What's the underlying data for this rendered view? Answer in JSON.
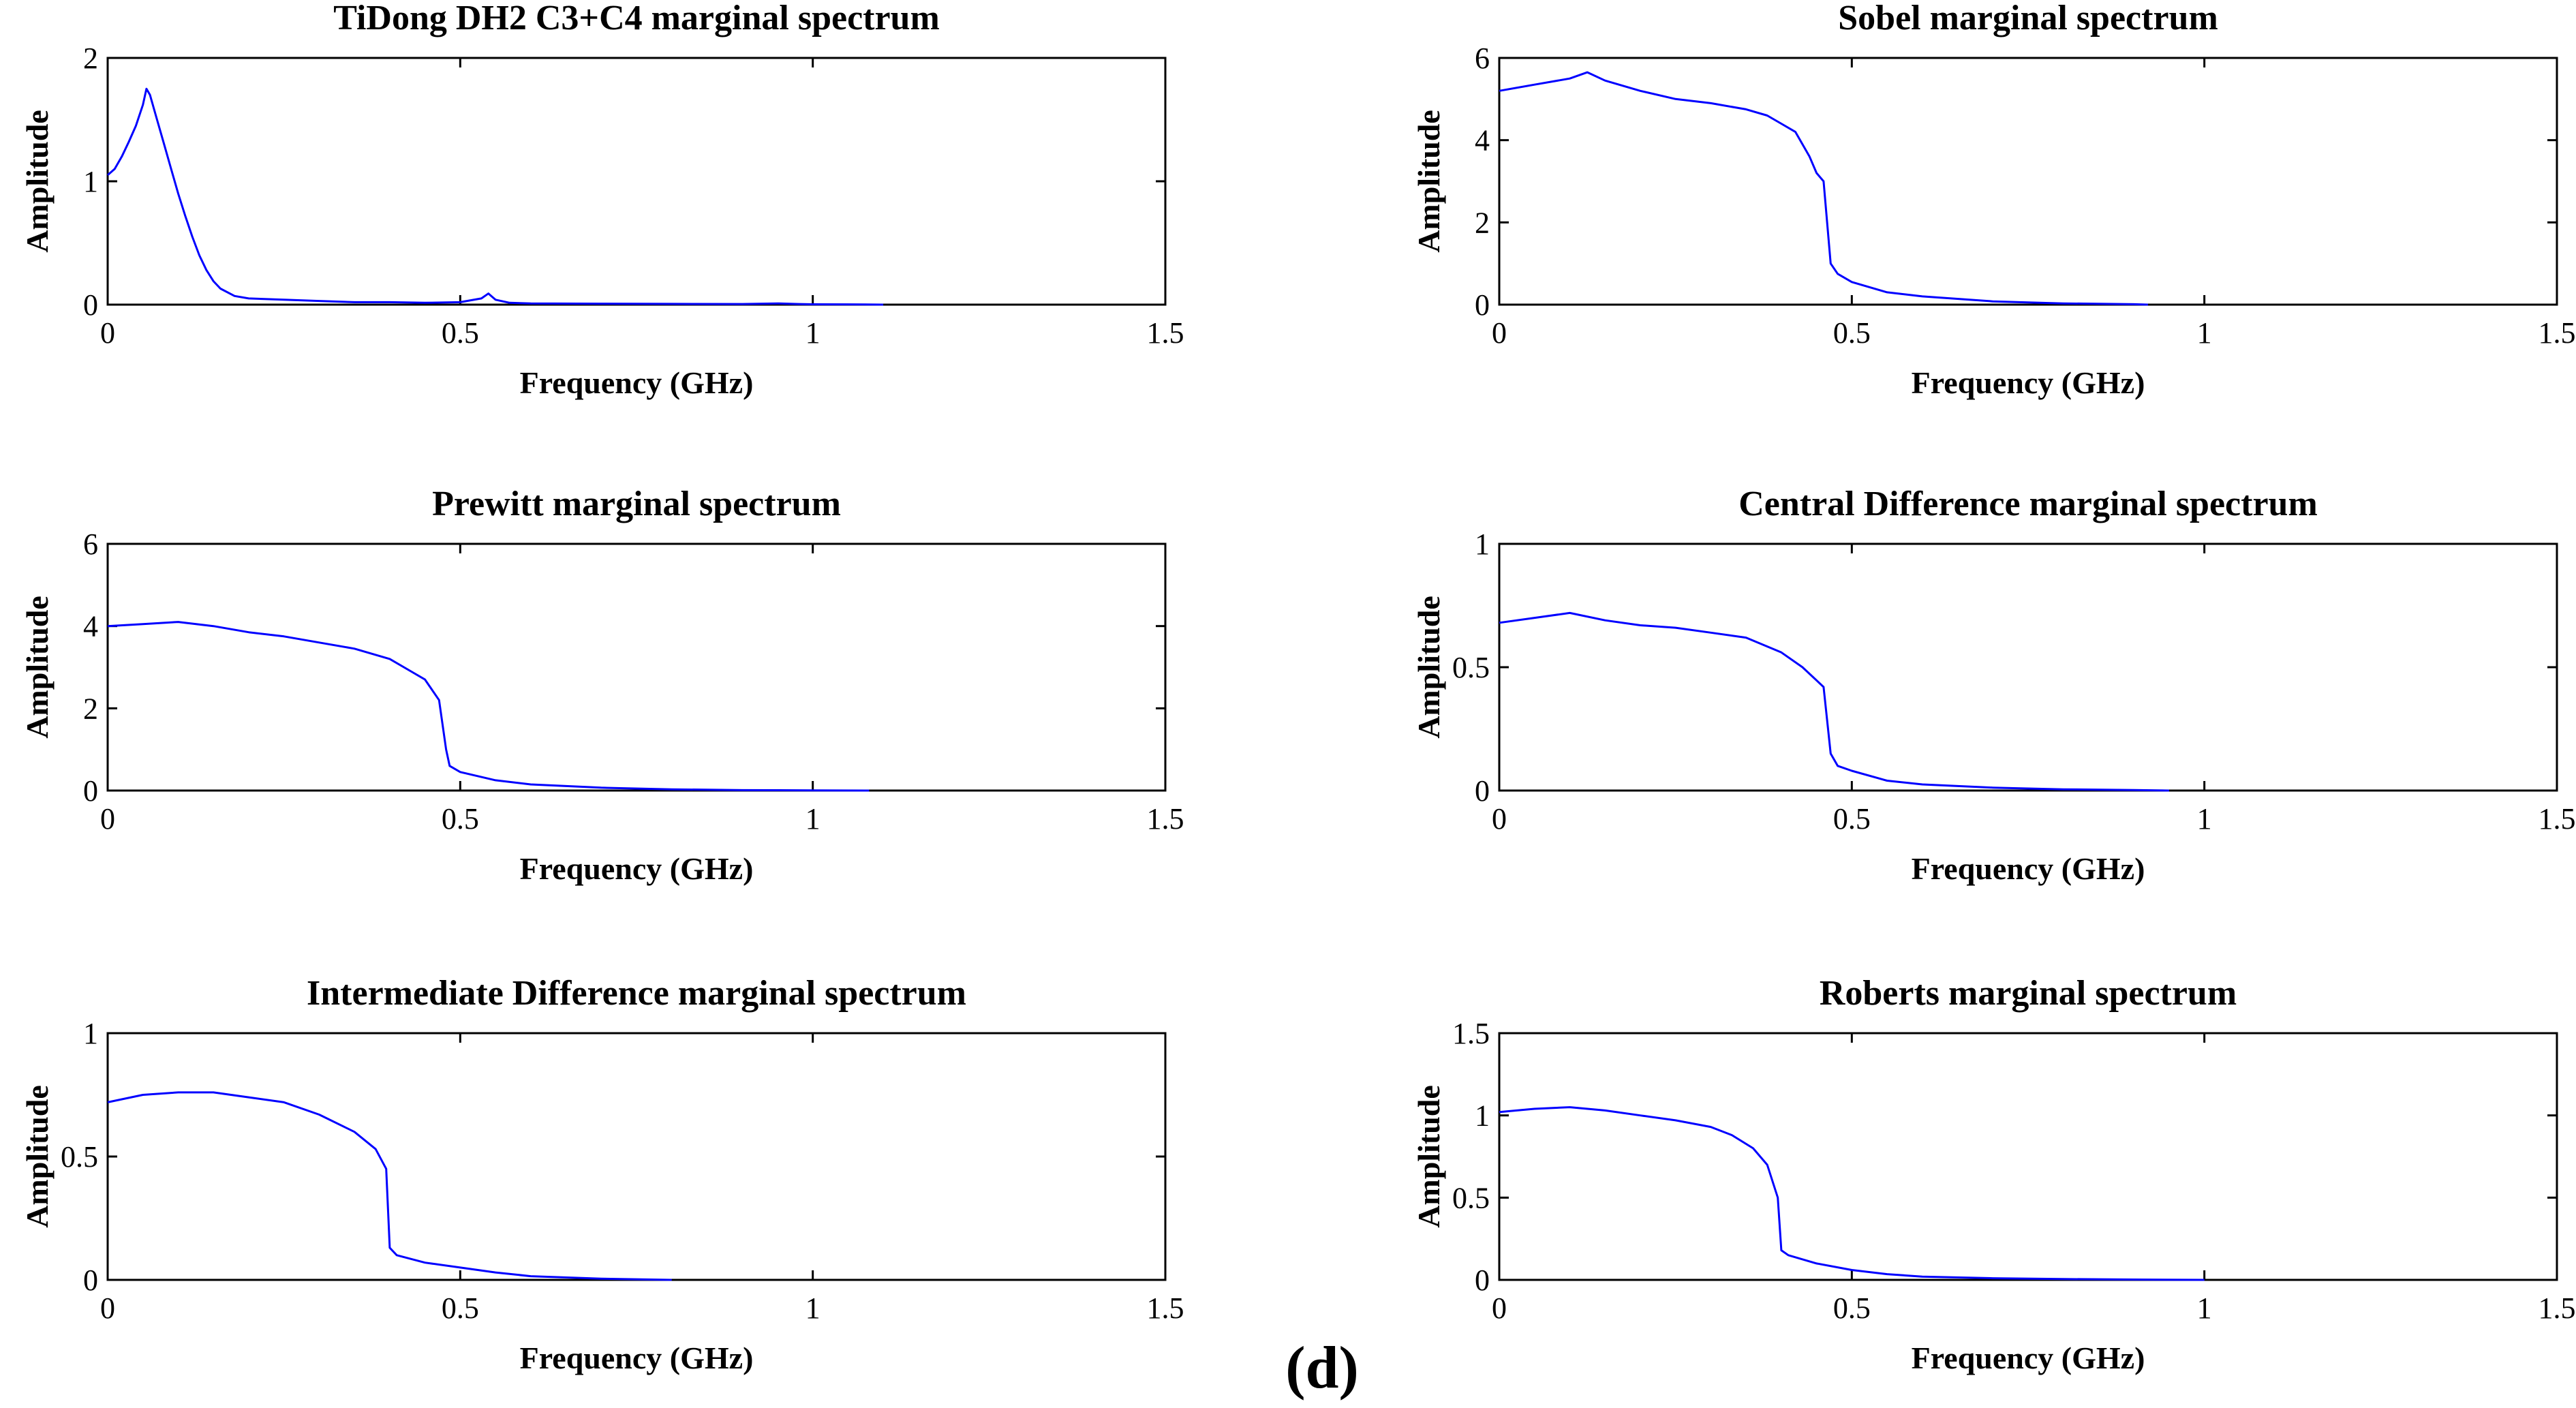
{
  "figure_label": "(d)",
  "chart_data": [
    {
      "type": "line",
      "title": "TiDong DH2 C3+C4 marginal spectrum",
      "xlabel": "Frequency (GHz)",
      "ylabel": "Amplitude",
      "xlim": [
        0,
        1.5
      ],
      "ylim": [
        0,
        2
      ],
      "xticks": [
        "0",
        "0.5",
        "1",
        "1.5"
      ],
      "yticks": [
        "0",
        "1",
        "2"
      ],
      "color": "#0000ff",
      "series": [
        {
          "name": "",
          "x": [
            0,
            0.01,
            0.02,
            0.03,
            0.04,
            0.05,
            0.055,
            0.06,
            0.07,
            0.08,
            0.09,
            0.1,
            0.11,
            0.12,
            0.13,
            0.14,
            0.15,
            0.16,
            0.18,
            0.2,
            0.25,
            0.3,
            0.35,
            0.4,
            0.45,
            0.5,
            0.53,
            0.54,
            0.55,
            0.57,
            0.6,
            0.7,
            0.8,
            0.9,
            0.95,
            0.98,
            1.0,
            1.05,
            1.1
          ],
          "y": [
            1.05,
            1.1,
            1.2,
            1.32,
            1.45,
            1.62,
            1.75,
            1.7,
            1.5,
            1.3,
            1.1,
            0.9,
            0.72,
            0.55,
            0.4,
            0.28,
            0.19,
            0.13,
            0.07,
            0.05,
            0.04,
            0.03,
            0.02,
            0.02,
            0.015,
            0.02,
            0.05,
            0.09,
            0.04,
            0.015,
            0.01,
            0.008,
            0.006,
            0.005,
            0.01,
            0.005,
            0.003,
            0.002,
            0.0
          ]
        }
      ]
    },
    {
      "type": "line",
      "title": "Sobel marginal spectrum",
      "xlabel": "Frequency (GHz)",
      "ylabel": "Amplitude",
      "xlim": [
        0,
        1.5
      ],
      "ylim": [
        0,
        6
      ],
      "xticks": [
        "0",
        "0.5",
        "1",
        "1.5"
      ],
      "yticks": [
        "0",
        "2",
        "4",
        "6"
      ],
      "color": "#0000ff",
      "series": [
        {
          "name": "",
          "x": [
            0,
            0.05,
            0.1,
            0.125,
            0.15,
            0.2,
            0.25,
            0.3,
            0.35,
            0.38,
            0.4,
            0.42,
            0.44,
            0.45,
            0.46,
            0.47,
            0.48,
            0.5,
            0.55,
            0.6,
            0.7,
            0.8,
            0.9,
            0.92
          ],
          "y": [
            5.2,
            5.35,
            5.5,
            5.65,
            5.45,
            5.2,
            5.0,
            4.9,
            4.75,
            4.6,
            4.4,
            4.2,
            3.6,
            3.2,
            3.0,
            1.0,
            0.75,
            0.55,
            0.3,
            0.2,
            0.08,
            0.03,
            0.01,
            0.0
          ]
        }
      ]
    },
    {
      "type": "line",
      "title": "Prewitt marginal spectrum",
      "xlabel": "Frequency (GHz)",
      "ylabel": "Amplitude",
      "xlim": [
        0,
        1.5
      ],
      "ylim": [
        0,
        6
      ],
      "xticks": [
        "0",
        "0.5",
        "1",
        "1.5"
      ],
      "yticks": [
        "0",
        "2",
        "4",
        "6"
      ],
      "color": "#0000ff",
      "series": [
        {
          "name": "",
          "x": [
            0,
            0.05,
            0.1,
            0.15,
            0.2,
            0.25,
            0.3,
            0.35,
            0.4,
            0.43,
            0.45,
            0.47,
            0.48,
            0.485,
            0.5,
            0.55,
            0.6,
            0.7,
            0.8,
            0.9,
            1.0,
            1.08
          ],
          "y": [
            4.0,
            4.05,
            4.1,
            4.0,
            3.85,
            3.75,
            3.6,
            3.45,
            3.2,
            2.9,
            2.7,
            2.2,
            1.0,
            0.6,
            0.45,
            0.25,
            0.15,
            0.07,
            0.03,
            0.01,
            0.005,
            0.0
          ]
        }
      ]
    },
    {
      "type": "line",
      "title": "Central Difference marginal spectrum",
      "xlabel": "Frequency (GHz)",
      "ylabel": "Amplitude",
      "xlim": [
        0,
        1.5
      ],
      "ylim": [
        0,
        1
      ],
      "xticks": [
        "0",
        "0.5",
        "1",
        "1.5"
      ],
      "yticks": [
        "0",
        "0.5",
        "1"
      ],
      "color": "#0000ff",
      "series": [
        {
          "name": "",
          "x": [
            0,
            0.05,
            0.1,
            0.15,
            0.2,
            0.25,
            0.3,
            0.35,
            0.4,
            0.43,
            0.46,
            0.47,
            0.48,
            0.5,
            0.55,
            0.6,
            0.7,
            0.8,
            0.9,
            0.95
          ],
          "y": [
            0.68,
            0.7,
            0.72,
            0.69,
            0.67,
            0.66,
            0.64,
            0.62,
            0.56,
            0.5,
            0.42,
            0.15,
            0.1,
            0.08,
            0.04,
            0.025,
            0.012,
            0.005,
            0.002,
            0.0
          ]
        }
      ]
    },
    {
      "type": "line",
      "title": "Intermediate Difference marginal spectrum",
      "xlabel": "Frequency (GHz)",
      "ylabel": "Amplitude",
      "xlim": [
        0,
        1.5
      ],
      "ylim": [
        0,
        1
      ],
      "xticks": [
        "0",
        "0.5",
        "1",
        "1.5"
      ],
      "yticks": [
        "0",
        "0.5",
        "1"
      ],
      "color": "#0000ff",
      "series": [
        {
          "name": "",
          "x": [
            0,
            0.05,
            0.1,
            0.15,
            0.2,
            0.25,
            0.3,
            0.35,
            0.38,
            0.395,
            0.4,
            0.41,
            0.45,
            0.5,
            0.55,
            0.6,
            0.7,
            0.8
          ],
          "y": [
            0.72,
            0.75,
            0.76,
            0.76,
            0.74,
            0.72,
            0.67,
            0.6,
            0.53,
            0.45,
            0.13,
            0.1,
            0.07,
            0.05,
            0.03,
            0.015,
            0.005,
            0.0
          ]
        }
      ]
    },
    {
      "type": "line",
      "title": "Roberts marginal spectrum",
      "xlabel": "Frequency (GHz)",
      "ylabel": "Amplitude",
      "xlim": [
        0,
        1.5
      ],
      "ylim": [
        0,
        1.5
      ],
      "xticks": [
        "0",
        "0.5",
        "1",
        "1.5"
      ],
      "yticks": [
        "0",
        "0.5",
        "1",
        "1.5"
      ],
      "color": "#0000ff",
      "series": [
        {
          "name": "",
          "x": [
            0,
            0.05,
            0.1,
            0.15,
            0.2,
            0.25,
            0.3,
            0.33,
            0.36,
            0.38,
            0.395,
            0.4,
            0.41,
            0.45,
            0.5,
            0.55,
            0.6,
            0.7,
            0.8,
            0.9,
            1.0
          ],
          "y": [
            1.02,
            1.04,
            1.05,
            1.03,
            1.0,
            0.97,
            0.93,
            0.88,
            0.8,
            0.7,
            0.5,
            0.18,
            0.15,
            0.1,
            0.06,
            0.035,
            0.02,
            0.01,
            0.005,
            0.002,
            0.0
          ]
        }
      ]
    }
  ]
}
